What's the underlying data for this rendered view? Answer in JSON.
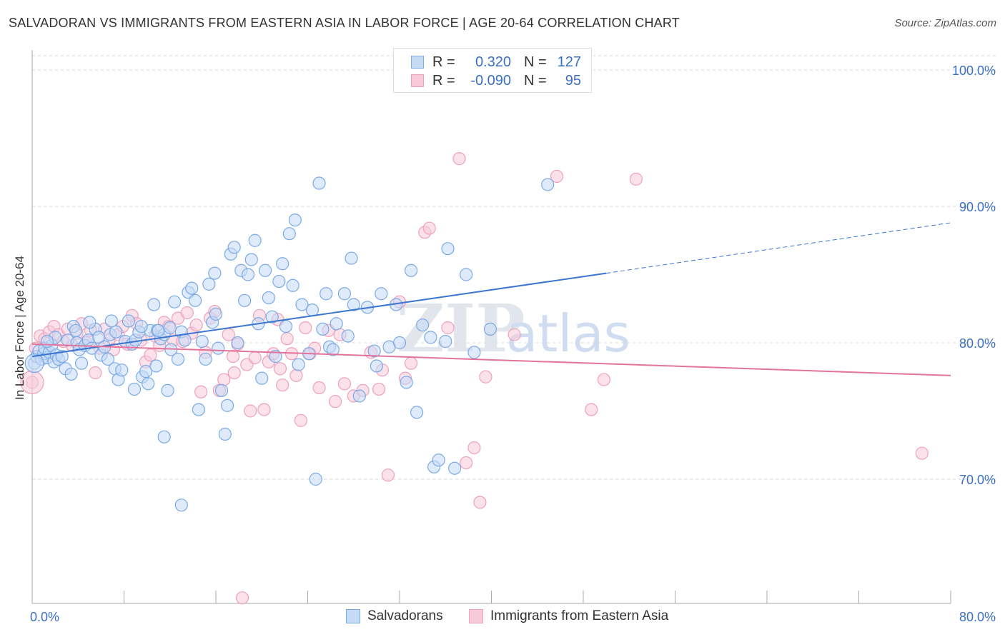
{
  "title": "SALVADORAN VS IMMIGRANTS FROM EASTERN ASIA IN LABOR FORCE | AGE 20-64 CORRELATION CHART",
  "source": "Source: ZipAtlas.com",
  "watermark": {
    "zip": "ZIP",
    "atlas": "atlas"
  },
  "legend": {
    "rows": [
      {
        "r_label": "R =",
        "r_value": "0.320",
        "n_label": "N =",
        "n_value": "127",
        "color": "#7aaae6",
        "fill": "#c5daf5"
      },
      {
        "r_label": "R =",
        "r_value": "-0.090",
        "n_label": "N =",
        "n_value": "95",
        "color": "#eea1bb",
        "fill": "#f8cad9"
      }
    ]
  },
  "bottom_legend": [
    {
      "label": "Salvadorans",
      "color": "#7aaae6",
      "fill": "#c5daf5"
    },
    {
      "label": "Immigrants from Eastern Asia",
      "color": "#eea1bb",
      "fill": "#f8cad9"
    }
  ],
  "chart_data": {
    "type": "scatter",
    "title": "SALVADORAN VS IMMIGRANTS FROM EASTERN ASIA IN LABOR FORCE | AGE 20-64 CORRELATION CHART",
    "xlabel": "",
    "ylabel": "In Labor Force | Age 20-64",
    "xlim": [
      0,
      80
    ],
    "ylim": [
      60.5,
      104
    ],
    "x_tick_labels": [
      {
        "value": 0,
        "label": "0.0%"
      },
      {
        "value": 80,
        "label": "80.0%"
      }
    ],
    "y_tick_labels": [
      {
        "value": 100,
        "label": "100.0%"
      },
      {
        "value": 90,
        "label": "90.0%"
      },
      {
        "value": 80,
        "label": "80.0%"
      },
      {
        "value": 70,
        "label": "70.0%"
      }
    ],
    "y_gridlines": [
      100,
      90,
      80,
      70
    ],
    "x_minor_ticks": [
      0,
      8,
      16,
      24,
      32,
      40,
      48,
      56,
      64,
      72,
      80
    ],
    "grid": true,
    "legend_position": "top-center",
    "series": [
      {
        "name": "Salvadorans",
        "color": "#3a76d0",
        "fill": "#c5daf5",
        "stroke": "#7aaae6",
        "trend": {
          "x0": 0,
          "y0": 79.0,
          "x1": 50,
          "y1": 85.1,
          "dash_to_x": 80,
          "dash_to_y": 88.8
        },
        "points": [
          [
            0.2,
            78.5
          ],
          [
            0.4,
            79.0
          ],
          [
            0.6,
            79.4
          ],
          [
            0.8,
            78.8
          ],
          [
            1.0,
            79.2
          ],
          [
            1.1,
            79.6
          ],
          [
            1.3,
            78.9
          ],
          [
            1.5,
            79.3
          ],
          [
            1.7,
            79.8
          ],
          [
            1.9,
            78.6
          ],
          [
            2.1,
            79.1
          ],
          [
            2.3,
            78.8
          ],
          [
            2.6,
            79.0
          ],
          [
            2.9,
            78.1
          ],
          [
            3.1,
            80.2
          ],
          [
            3.4,
            77.7
          ],
          [
            3.6,
            81.2
          ],
          [
            3.9,
            80.0
          ],
          [
            4.1,
            79.5
          ],
          [
            4.3,
            78.5
          ],
          [
            4.6,
            79.8
          ],
          [
            4.9,
            80.2
          ],
          [
            5.2,
            79.6
          ],
          [
            5.5,
            81.0
          ],
          [
            5.8,
            80.4
          ],
          [
            6.0,
            79.1
          ],
          [
            6.3,
            79.7
          ],
          [
            6.6,
            78.8
          ],
          [
            6.9,
            81.6
          ],
          [
            7.2,
            78.1
          ],
          [
            7.5,
            77.3
          ],
          [
            7.8,
            78.0
          ],
          [
            8.1,
            80.1
          ],
          [
            8.4,
            81.6
          ],
          [
            8.7,
            79.9
          ],
          [
            9.0,
            80.2
          ],
          [
            8.9,
            76.6
          ],
          [
            9.3,
            80.8
          ],
          [
            9.6,
            77.5
          ],
          [
            9.9,
            77.9
          ],
          [
            10.1,
            77.0
          ],
          [
            10.3,
            80.9
          ],
          [
            10.6,
            82.8
          ],
          [
            10.9,
            80.9
          ],
          [
            11.2,
            80.3
          ],
          [
            11.5,
            80.6
          ],
          [
            11.8,
            76.5
          ],
          [
            12.1,
            79.5
          ],
          [
            12.4,
            83.0
          ],
          [
            12.7,
            78.8
          ],
          [
            13.0,
            80.8
          ],
          [
            13.3,
            80.2
          ],
          [
            13.6,
            83.7
          ],
          [
            13.9,
            84.0
          ],
          [
            14.2,
            83.1
          ],
          [
            14.5,
            75.1
          ],
          [
            14.8,
            80.1
          ],
          [
            15.1,
            78.8
          ],
          [
            15.4,
            84.3
          ],
          [
            15.7,
            81.5
          ],
          [
            15.9,
            85.1
          ],
          [
            16.2,
            79.6
          ],
          [
            16.5,
            76.5
          ],
          [
            16.8,
            73.3
          ],
          [
            17.0,
            75.4
          ],
          [
            17.3,
            86.5
          ],
          [
            17.6,
            87.0
          ],
          [
            17.9,
            80.0
          ],
          [
            18.2,
            85.3
          ],
          [
            18.5,
            83.1
          ],
          [
            18.8,
            85.0
          ],
          [
            19.1,
            86.1
          ],
          [
            19.4,
            87.5
          ],
          [
            19.7,
            81.4
          ],
          [
            20.0,
            77.4
          ],
          [
            20.3,
            85.3
          ],
          [
            20.6,
            83.3
          ],
          [
            20.9,
            81.9
          ],
          [
            21.2,
            79.0
          ],
          [
            21.5,
            84.5
          ],
          [
            21.8,
            85.8
          ],
          [
            22.1,
            81.2
          ],
          [
            22.4,
            88.0
          ],
          [
            22.7,
            84.2
          ],
          [
            22.9,
            89.0
          ],
          [
            23.2,
            78.4
          ],
          [
            23.5,
            82.8
          ],
          [
            24.1,
            79.2
          ],
          [
            24.4,
            82.4
          ],
          [
            24.7,
            70.0
          ],
          [
            25.0,
            91.7
          ],
          [
            25.3,
            81.0
          ],
          [
            25.6,
            83.6
          ],
          [
            25.9,
            79.7
          ],
          [
            26.2,
            79.5
          ],
          [
            27.2,
            83.6
          ],
          [
            27.5,
            80.5
          ],
          [
            27.8,
            86.2
          ],
          [
            28.0,
            82.8
          ],
          [
            29.2,
            82.6
          ],
          [
            29.8,
            79.4
          ],
          [
            30.4,
            83.6
          ],
          [
            31.1,
            79.7
          ],
          [
            31.7,
            82.8
          ],
          [
            32.0,
            80.0
          ],
          [
            32.6,
            77.1
          ],
          [
            33.0,
            85.3
          ],
          [
            34.7,
            80.4
          ],
          [
            35.0,
            70.9
          ],
          [
            35.4,
            71.4
          ],
          [
            36.2,
            86.9
          ],
          [
            36.8,
            70.8
          ],
          [
            37.8,
            85.0
          ],
          [
            39.9,
            81.0
          ],
          [
            44.9,
            91.6
          ],
          [
            28.5,
            76.1
          ],
          [
            30.0,
            78.3
          ],
          [
            34.0,
            81.3
          ],
          [
            33.5,
            74.9
          ],
          [
            36.0,
            80.1
          ],
          [
            38.5,
            79.3
          ],
          [
            13.0,
            68.1
          ],
          [
            11.5,
            73.1
          ],
          [
            10.8,
            78.3
          ],
          [
            5.0,
            81.5
          ],
          [
            3.8,
            80.9
          ],
          [
            2.0,
            80.4
          ],
          [
            1.3,
            80.1
          ],
          [
            6.8,
            80.6
          ],
          [
            7.3,
            80.8
          ],
          [
            9.5,
            81.2
          ],
          [
            11.0,
            80.9
          ],
          [
            12.0,
            81.1
          ],
          [
            16.0,
            82.1
          ],
          [
            26.5,
            81.4
          ]
        ]
      },
      {
        "name": "Immigrants from Eastern Asia",
        "color": "#e2739b",
        "fill": "#f8cad9",
        "stroke": "#eea1bb",
        "trend": {
          "x0": 0,
          "y0": 79.9,
          "x1": 80,
          "y1": 77.6
        },
        "points": [
          [
            0.0,
            77.1
          ],
          [
            0.3,
            79.6
          ],
          [
            0.7,
            80.5
          ],
          [
            1.1,
            80.3
          ],
          [
            1.5,
            80.8
          ],
          [
            1.9,
            81.2
          ],
          [
            2.3,
            80.6
          ],
          [
            2.7,
            80.1
          ],
          [
            3.1,
            81.0
          ],
          [
            3.5,
            79.8
          ],
          [
            3.9,
            80.7
          ],
          [
            4.3,
            81.4
          ],
          [
            4.7,
            80.0
          ],
          [
            5.1,
            80.9
          ],
          [
            5.5,
            77.8
          ],
          [
            5.9,
            79.6
          ],
          [
            6.3,
            81.0
          ],
          [
            6.7,
            80.2
          ],
          [
            7.1,
            79.5
          ],
          [
            7.5,
            80.6
          ],
          [
            7.9,
            81.2
          ],
          [
            8.3,
            79.9
          ],
          [
            8.7,
            82.0
          ],
          [
            9.1,
            81.4
          ],
          [
            9.5,
            80.2
          ],
          [
            9.9,
            78.6
          ],
          [
            10.3,
            79.1
          ],
          [
            10.7,
            80.5
          ],
          [
            11.1,
            79.8
          ],
          [
            11.5,
            81.5
          ],
          [
            11.9,
            81.2
          ],
          [
            12.3,
            80.2
          ],
          [
            12.7,
            81.8
          ],
          [
            13.1,
            80.1
          ],
          [
            13.5,
            82.2
          ],
          [
            13.9,
            80.7
          ],
          [
            14.3,
            81.3
          ],
          [
            14.7,
            76.4
          ],
          [
            15.1,
            79.3
          ],
          [
            15.5,
            81.8
          ],
          [
            15.9,
            82.3
          ],
          [
            16.3,
            76.5
          ],
          [
            16.7,
            77.3
          ],
          [
            17.1,
            80.6
          ],
          [
            17.5,
            79.0
          ],
          [
            17.9,
            79.9
          ],
          [
            18.3,
            61.3
          ],
          [
            18.7,
            78.4
          ],
          [
            19.0,
            75.0
          ],
          [
            19.4,
            78.9
          ],
          [
            19.8,
            82.0
          ],
          [
            20.2,
            75.1
          ],
          [
            20.6,
            78.6
          ],
          [
            21.0,
            79.2
          ],
          [
            21.4,
            81.7
          ],
          [
            21.8,
            76.9
          ],
          [
            22.2,
            80.3
          ],
          [
            22.6,
            79.2
          ],
          [
            23.0,
            77.6
          ],
          [
            23.4,
            74.3
          ],
          [
            23.8,
            81.1
          ],
          [
            24.2,
            79.2
          ],
          [
            24.6,
            79.6
          ],
          [
            25.0,
            76.7
          ],
          [
            25.8,
            80.9
          ],
          [
            26.4,
            75.7
          ],
          [
            27.2,
            77.0
          ],
          [
            28.0,
            76.1
          ],
          [
            28.8,
            76.5
          ],
          [
            29.5,
            79.3
          ],
          [
            30.2,
            76.6
          ],
          [
            31.0,
            70.3
          ],
          [
            32.0,
            83.0
          ],
          [
            32.5,
            77.4
          ],
          [
            33.0,
            78.5
          ],
          [
            34.2,
            88.1
          ],
          [
            34.6,
            88.4
          ],
          [
            36.2,
            81.1
          ],
          [
            37.2,
            93.5
          ],
          [
            37.8,
            71.2
          ],
          [
            38.5,
            72.3
          ],
          [
            39.0,
            68.3
          ],
          [
            39.5,
            77.5
          ],
          [
            42.0,
            80.6
          ],
          [
            45.7,
            92.2
          ],
          [
            48.7,
            75.1
          ],
          [
            49.8,
            77.3
          ],
          [
            52.6,
            92.0
          ],
          [
            77.5,
            71.9
          ],
          [
            26.8,
            80.6
          ],
          [
            30.5,
            78.0
          ],
          [
            21.6,
            78.1
          ],
          [
            17.6,
            77.8
          ]
        ]
      }
    ]
  }
}
